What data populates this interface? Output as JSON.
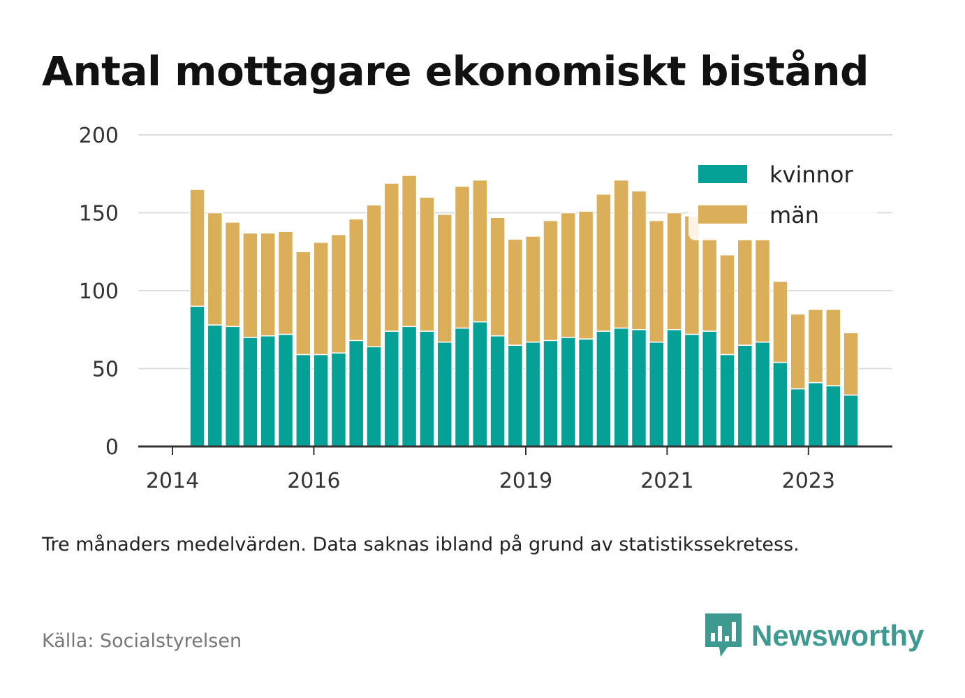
{
  "title": "Antal mottagare ekonomiskt bistånd",
  "note": "Tre månaders medelvärden. Data saknas ibland på grund av statistikssekretess.",
  "source": "Källa: Socialstyrelsen",
  "brand": {
    "name": "Newsworthy",
    "icon": "newsworthy-bar-chart-bubble-icon",
    "color": "#3e9a91"
  },
  "chart_data": {
    "type": "bar",
    "stacked": true,
    "grid": true,
    "legend_position": "top-right",
    "ylim": [
      0,
      200
    ],
    "yticks": [
      0,
      50,
      100,
      150,
      200
    ],
    "xticks": [
      {
        "label": "2014",
        "at": 0
      },
      {
        "label": "2016",
        "at": 8
      },
      {
        "label": "2019",
        "at": 20
      },
      {
        "label": "2021",
        "at": 28
      },
      {
        "label": "2023",
        "at": 36
      }
    ],
    "series": [
      {
        "name": "kvinnor",
        "color": "#05a197",
        "values": [
          90,
          78,
          77,
          70,
          71,
          72,
          59,
          59,
          60,
          68,
          64,
          74,
          77,
          74,
          67,
          76,
          80,
          71,
          65,
          67,
          68,
          70,
          69,
          74,
          76,
          75,
          67,
          75,
          72,
          74,
          59,
          65,
          67,
          54,
          37,
          41,
          39,
          33
        ]
      },
      {
        "name": "män",
        "color": "#dbae59",
        "values": [
          75,
          72,
          67,
          67,
          66,
          66,
          66,
          72,
          76,
          78,
          91,
          95,
          97,
          86,
          82,
          91,
          91,
          76,
          68,
          68,
          77,
          80,
          82,
          88,
          95,
          89,
          78,
          75,
          76,
          60,
          64,
          68,
          66,
          52,
          48,
          47,
          49,
          40
        ]
      }
    ]
  }
}
